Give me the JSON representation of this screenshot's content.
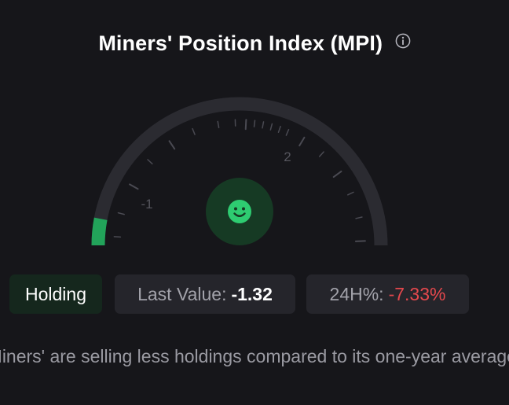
{
  "header": {
    "title": "Miners' Position Index (MPI)"
  },
  "gauge": {
    "tick_labels": [
      "-1",
      "2"
    ],
    "level": 0.06,
    "colors": {
      "track": "#2b2b31",
      "fill": "#22a35a",
      "tick": "#4a4a52",
      "face_bg": "#163a24",
      "face": "#2ecc71"
    },
    "indicator": "smiley-face-icon"
  },
  "chips": {
    "holding_label": "Holding",
    "last_value_label": "Last Value:",
    "last_value": "-1.32",
    "change_label": "24H%:",
    "change_value": "-7.33%"
  },
  "description": "Miners' are selling less holdings compared to its one-year average."
}
